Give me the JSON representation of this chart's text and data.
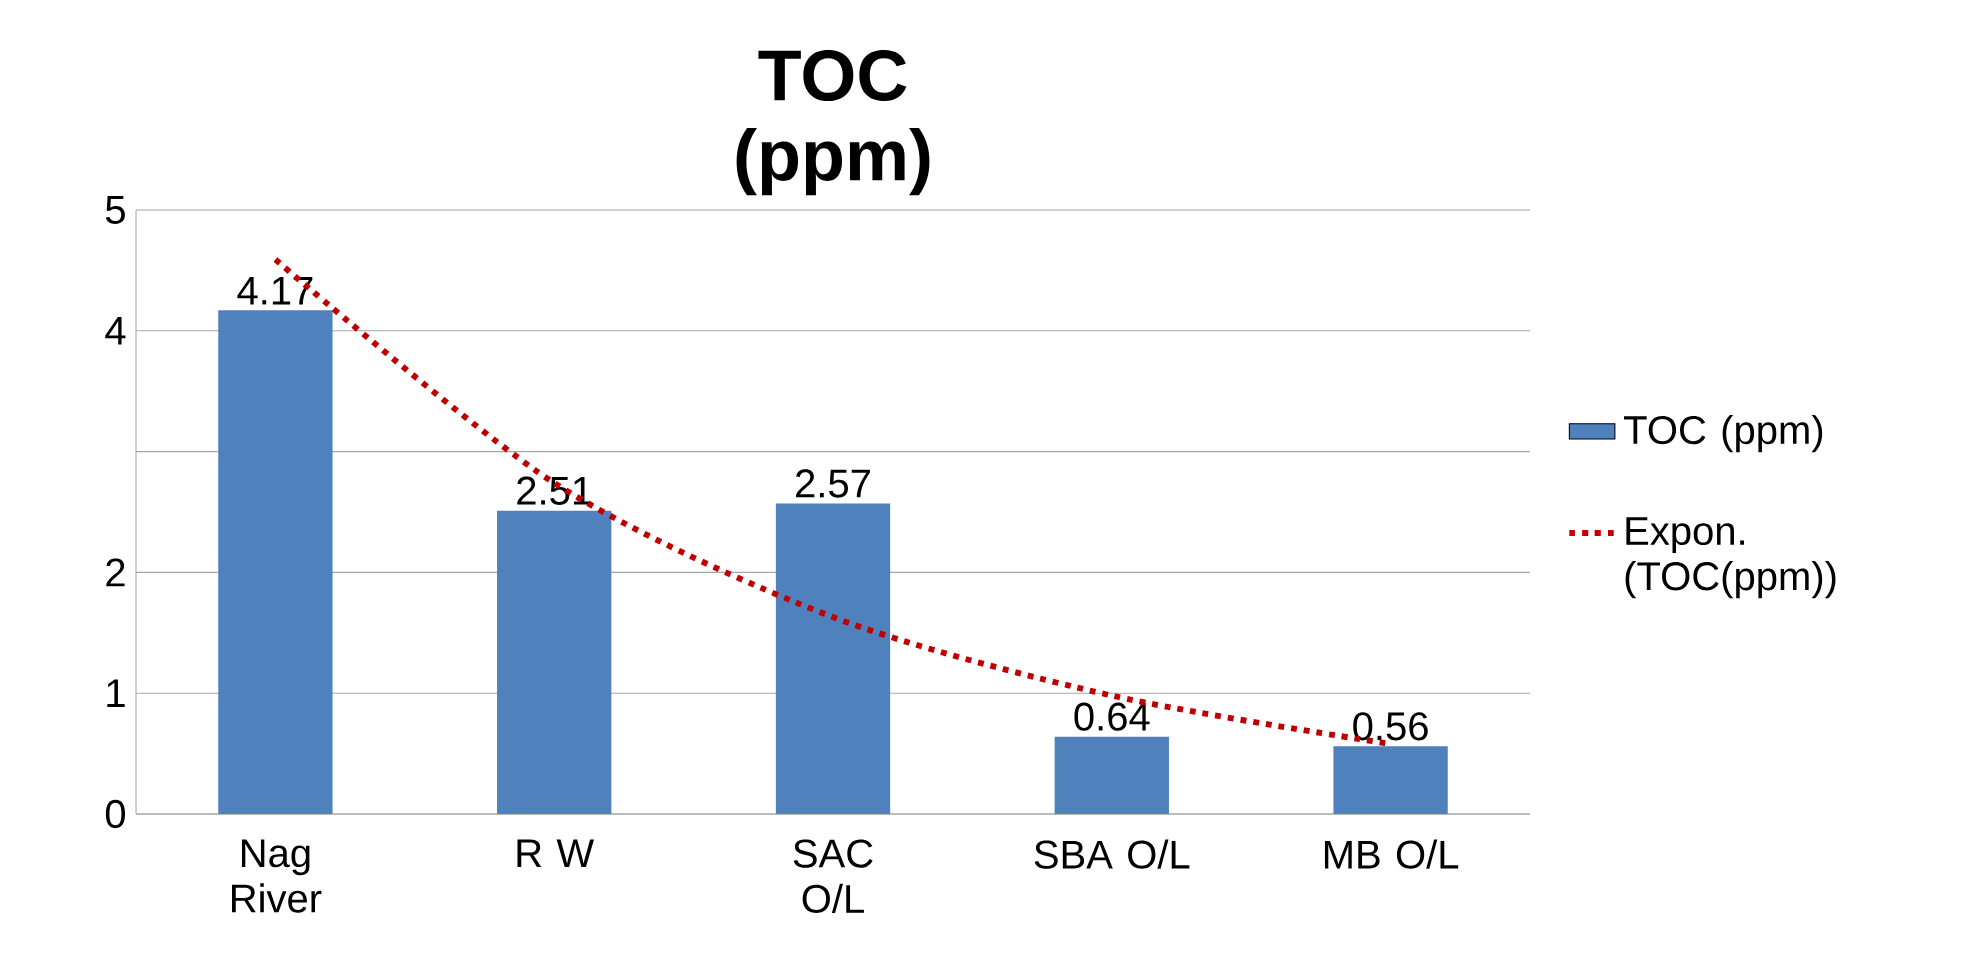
{
  "chart_data": {
    "type": "bar",
    "title": "TOC (ppm)",
    "categories": [
      "Nag River",
      "R W",
      "SAC O/L",
      "SBA O/L",
      "MB O/L"
    ],
    "series": [
      {
        "name": "TOC (ppm)",
        "color": "#4f81bd",
        "values": [
          4.17,
          2.51,
          2.57,
          0.64,
          0.56
        ],
        "value_labels": [
          "4.17",
          "2.51",
          "2.57",
          "0.64",
          "0.56"
        ]
      },
      {
        "name": "Expon. (TOC(ppm))",
        "type": "line",
        "color": "#c00000",
        "line_style": "dotted",
        "marker": "none",
        "values": [
          4.59,
          2.74,
          1.63,
          0.98,
          0.58
        ]
      }
    ],
    "ylim": [
      0,
      5
    ],
    "yticks": [
      0,
      1,
      2,
      {
        "value": 3,
        "label": null
      },
      4,
      5
    ],
    "grid": "y",
    "legend": "right"
  }
}
